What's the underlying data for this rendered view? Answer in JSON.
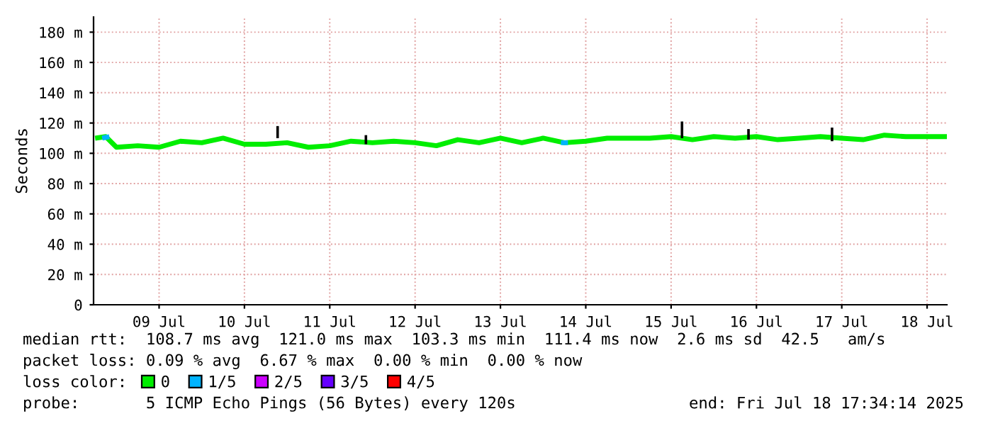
{
  "chart_data": {
    "type": "line",
    "ylabel": "Seconds",
    "xlim": [
      "2025-07-08T17:34",
      "2025-07-18T17:34"
    ],
    "xticks": [
      {
        "value": "2025-07-09T12:00",
        "label": "09 Jul"
      },
      {
        "value": "2025-07-10T12:00",
        "label": "10 Jul"
      },
      {
        "value": "2025-07-11T12:00",
        "label": "11 Jul"
      },
      {
        "value": "2025-07-12T12:00",
        "label": "12 Jul"
      },
      {
        "value": "2025-07-13T12:00",
        "label": "13 Jul"
      },
      {
        "value": "2025-07-14T12:00",
        "label": "14 Jul"
      },
      {
        "value": "2025-07-15T12:00",
        "label": "15 Jul"
      },
      {
        "value": "2025-07-16T12:00",
        "label": "16 Jul"
      },
      {
        "value": "2025-07-17T12:00",
        "label": "17 Jul"
      },
      {
        "value": "2025-07-18T12:00",
        "label": "18 Jul"
      }
    ],
    "ylim": [
      0,
      190
    ],
    "yticks": [
      0,
      {
        "value": 20,
        "label": "20 m"
      },
      {
        "value": 40,
        "label": "40 m"
      },
      {
        "value": 60,
        "label": "60 m"
      },
      {
        "value": 80,
        "label": "80 m"
      },
      {
        "value": 100,
        "label": "100 m"
      },
      {
        "value": 120,
        "label": "120 m"
      },
      {
        "value": 140,
        "label": "140 m"
      },
      {
        "value": 160,
        "label": "160 m"
      },
      {
        "value": 180,
        "label": "180 m"
      }
    ],
    "grid": true,
    "legend": "bottom",
    "marker": "none",
    "line_style": "solid",
    "series": [
      {
        "type": "bar",
        "color": "#000000",
        "x": [
          "2025-07-10T21:20",
          "2025-07-11T22:10",
          "2025-07-15T15:04",
          "2025-07-16T09:46",
          "2025-07-17T09:16"
        ],
        "base": [
          110,
          106,
          110,
          109,
          108
        ],
        "values": [
          8,
          6,
          11,
          7,
          9
        ]
      },
      {
        "name": "0",
        "color": "#00ee00",
        "x": [
          "2025-07-08T18:00",
          "2025-07-08T21:00",
          "2025-07-09T00:00",
          "2025-07-09T06:00",
          "2025-07-09T12:00",
          "2025-07-09T18:00",
          "2025-07-10T00:00",
          "2025-07-10T06:00",
          "2025-07-10T12:00",
          "2025-07-10T18:00",
          "2025-07-11T00:00",
          "2025-07-11T06:00",
          "2025-07-11T12:00",
          "2025-07-11T18:00",
          "2025-07-12T00:00",
          "2025-07-12T06:00",
          "2025-07-12T12:00",
          "2025-07-12T18:00",
          "2025-07-13T00:00",
          "2025-07-13T06:00",
          "2025-07-13T12:00",
          "2025-07-13T18:00",
          "2025-07-14T00:00",
          "2025-07-14T06:00",
          "2025-07-14T12:00",
          "2025-07-14T18:00",
          "2025-07-15T00:00",
          "2025-07-15T06:00",
          "2025-07-15T12:00",
          "2025-07-15T18:00",
          "2025-07-16T00:00",
          "2025-07-16T06:00",
          "2025-07-16T12:00",
          "2025-07-16T18:00",
          "2025-07-17T00:00",
          "2025-07-17T06:00",
          "2025-07-17T12:00",
          "2025-07-17T18:00",
          "2025-07-18T00:00",
          "2025-07-18T06:00",
          "2025-07-18T12:00",
          "2025-07-18T17:34"
        ],
        "values": [
          110,
          111,
          104,
          105,
          104,
          108,
          107,
          110,
          106,
          106,
          107,
          104,
          105,
          108,
          107,
          108,
          107,
          105,
          109,
          107,
          110,
          107,
          110,
          107,
          108,
          110,
          110,
          110,
          111,
          109,
          111,
          110,
          111,
          109,
          110,
          111,
          110,
          109,
          112,
          111,
          111,
          111
        ]
      },
      {
        "name": "1/5",
        "color": "#00b4ff",
        "x": [
          "2025-07-08T20:00",
          "2025-07-08T22:00",
          "2025-07-08T23:00",
          "2025-07-14T05:00",
          "2025-07-14T07:00"
        ],
        "values": [
          110,
          111,
          null,
          107,
          107
        ]
      },
      {
        "name": "2/5",
        "color": "#cc00ff"
      },
      {
        "name": "3/5",
        "color": "#6600ff"
      },
      {
        "name": "4/5",
        "color": "#ff0000"
      }
    ],
    "annotations": [
      "median rtt:  108.7 ms avg  121.0 ms max  103.3 ms min  111.4 ms now  2.6 ms sd  42.5   am/s",
      "packet loss: 0.09 % avg  6.67 % max  0.00 % min  0.00 % now",
      "loss color:",
      "probe:       5 ICMP Echo Pings (56 Bytes) every 120s",
      "end: Fri Jul 18 17:34:14 2025"
    ]
  }
}
